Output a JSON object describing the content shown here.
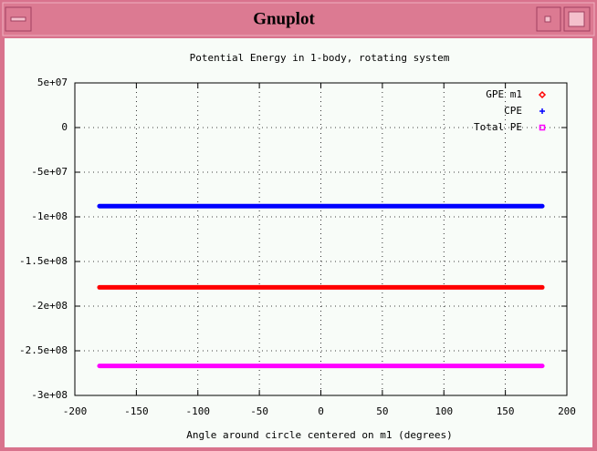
{
  "window": {
    "title": "Gnuplot"
  },
  "chart_data": {
    "type": "line",
    "title": "Potential Energy in 1-body, rotating system",
    "x_label": "Angle around circle centered on m1 (degrees)",
    "x": [
      -180,
      -170,
      -160,
      -150,
      -140,
      -130,
      -120,
      -110,
      -100,
      -90,
      -80,
      -70,
      -60,
      -50,
      -40,
      -30,
      -20,
      -10,
      0,
      10,
      20,
      30,
      40,
      50,
      60,
      70,
      80,
      90,
      100,
      110,
      120,
      130,
      140,
      150,
      160,
      170,
      180
    ],
    "series": [
      {
        "name": "GPE m1",
        "color": "#ff0000",
        "marker": "diamond",
        "values": [
          -179000000,
          -179000000,
          -179000000,
          -179000000,
          -179000000,
          -179000000,
          -179000000,
          -179000000,
          -179000000,
          -179000000,
          -179000000,
          -179000000,
          -179000000,
          -179000000,
          -179000000,
          -179000000,
          -179000000,
          -179000000,
          -179000000,
          -179000000,
          -179000000,
          -179000000,
          -179000000,
          -179000000,
          -179000000,
          -179000000,
          -179000000,
          -179000000,
          -179000000,
          -179000000,
          -179000000,
          -179000000,
          -179000000,
          -179000000,
          -179000000,
          -179000000,
          -179000000
        ]
      },
      {
        "name": "CPE",
        "color": "#0000ff",
        "marker": "plus",
        "values": [
          -88000000,
          -88000000,
          -88000000,
          -88000000,
          -88000000,
          -88000000,
          -88000000,
          -88000000,
          -88000000,
          -88000000,
          -88000000,
          -88000000,
          -88000000,
          -88000000,
          -88000000,
          -88000000,
          -88000000,
          -88000000,
          -88000000,
          -88000000,
          -88000000,
          -88000000,
          -88000000,
          -88000000,
          -88000000,
          -88000000,
          -88000000,
          -88000000,
          -88000000,
          -88000000,
          -88000000,
          -88000000,
          -88000000,
          -88000000,
          -88000000,
          -88000000,
          -88000000
        ]
      },
      {
        "name": "Total PE",
        "color": "#ff00ff",
        "marker": "box",
        "values": [
          -267000000,
          -267000000,
          -267000000,
          -267000000,
          -267000000,
          -267000000,
          -267000000,
          -267000000,
          -267000000,
          -267000000,
          -267000000,
          -267000000,
          -267000000,
          -267000000,
          -267000000,
          -267000000,
          -267000000,
          -267000000,
          -267000000,
          -267000000,
          -267000000,
          -267000000,
          -267000000,
          -267000000,
          -267000000,
          -267000000,
          -267000000,
          -267000000,
          -267000000,
          -267000000,
          -267000000,
          -267000000,
          -267000000,
          -267000000,
          -267000000,
          -267000000,
          -267000000
        ]
      }
    ],
    "xlim": [
      -200,
      200
    ],
    "xticks": [
      -200,
      -150,
      -100,
      -50,
      0,
      50,
      100,
      150,
      200
    ],
    "ylim": [
      -300000000,
      50000000
    ],
    "yticks": [
      {
        "value": 50000000,
        "label": "5e+07"
      },
      0,
      {
        "value": -50000000,
        "label": "-5e+07"
      },
      {
        "value": -100000000,
        "label": "-1e+08"
      },
      {
        "value": -150000000,
        "label": "-1.5e+08"
      },
      {
        "value": -200000000,
        "label": "-2e+08"
      },
      {
        "value": -250000000,
        "label": "-2.5e+08"
      },
      {
        "value": -300000000,
        "label": "-3e+08"
      }
    ],
    "grid": true,
    "legend": "top-right"
  }
}
